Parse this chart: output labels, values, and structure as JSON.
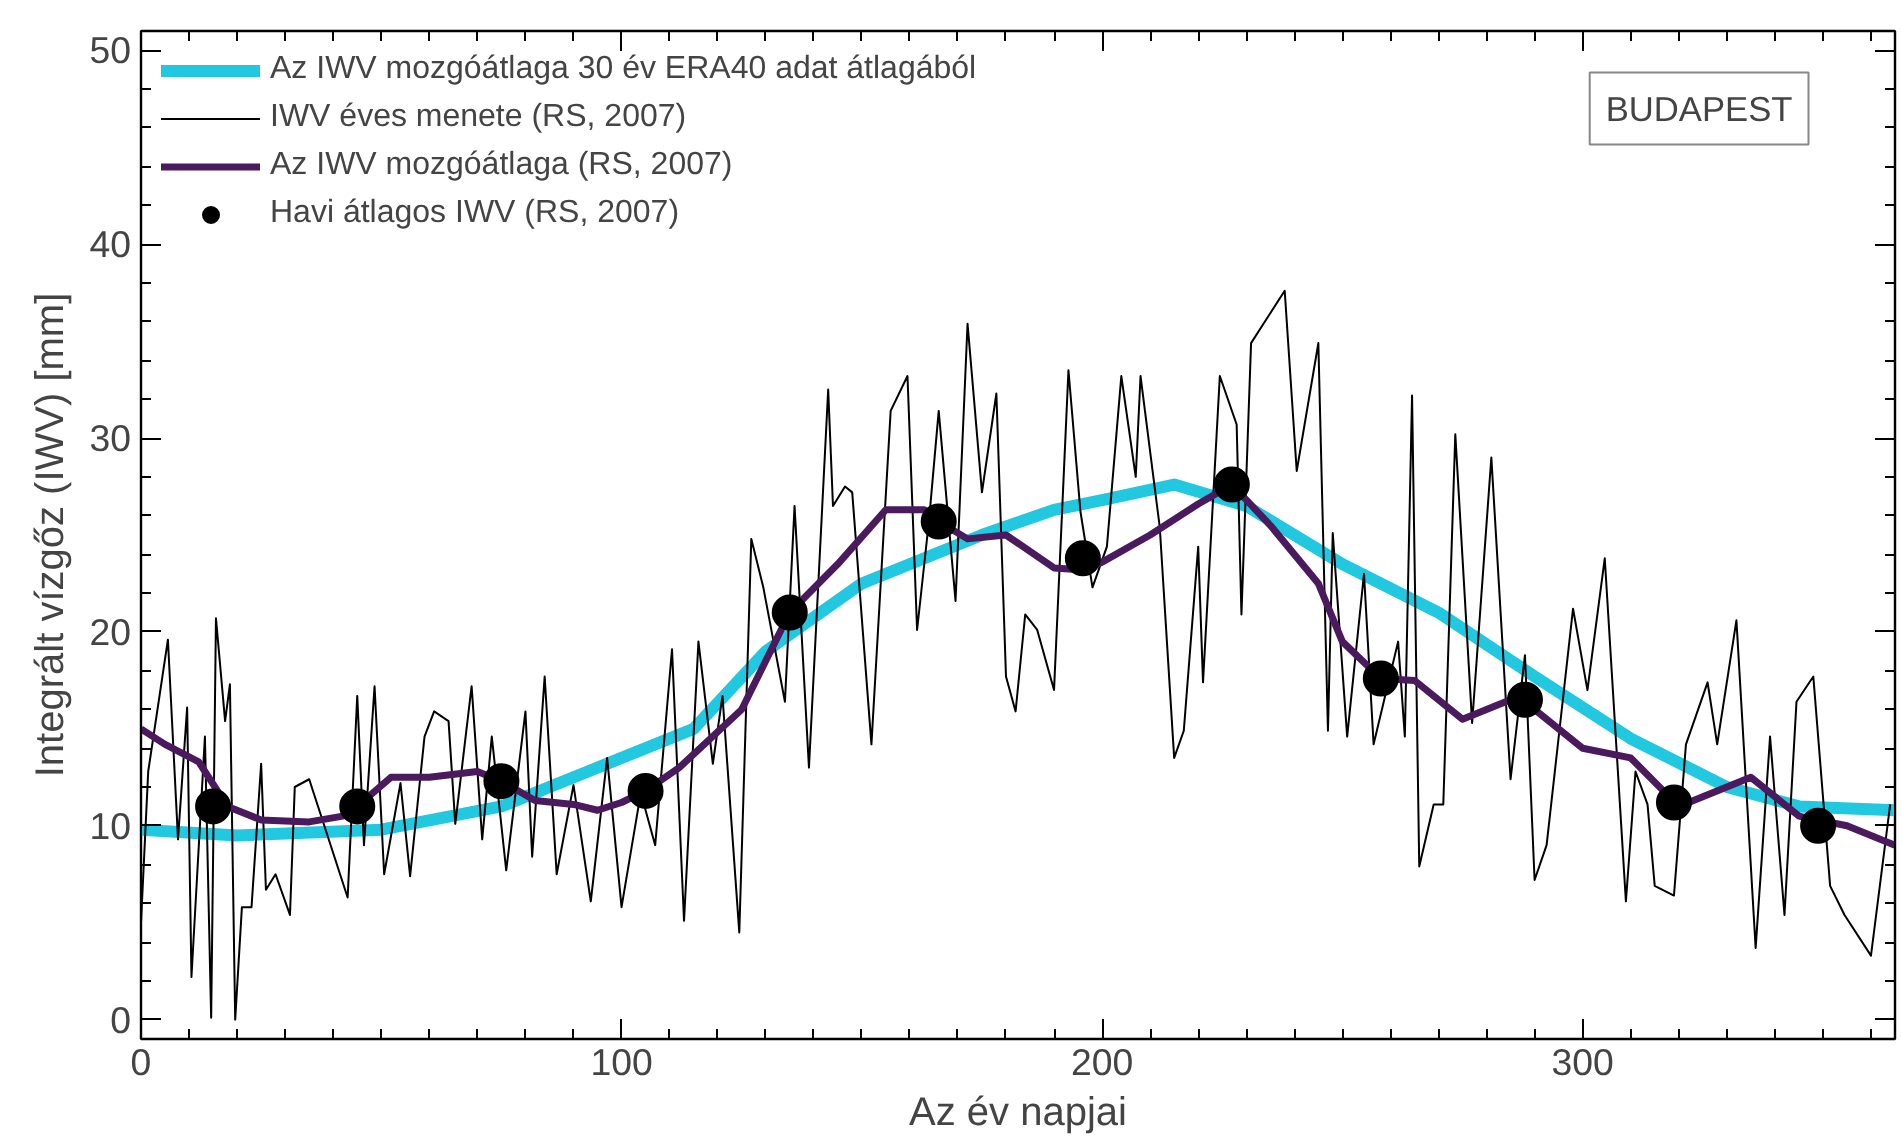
{
  "chart_data": {
    "type": "line",
    "xlabel": "Az év napjai",
    "ylabel": "Integrált vízgőz (IWV) [mm]",
    "xlim": [
      0,
      365
    ],
    "ylim": [
      -1,
      51
    ],
    "xticks": [
      0,
      100,
      200,
      300
    ],
    "yticks": [
      0,
      10,
      20,
      30,
      40,
      50
    ],
    "grid": false,
    "legend": "top left",
    "annotations": [
      "BUDAPEST"
    ],
    "series": [
      {
        "name": "Az IWV mozgóátlaga 30 év ERA40 adat átlagából",
        "color": "#22c8e0",
        "x": [
          0,
          20,
          50,
          75,
          100,
          115,
          130,
          150,
          175,
          190,
          200,
          215,
          230,
          250,
          270,
          290,
          310,
          330,
          345,
          365
        ],
        "values": [
          9.8,
          9.5,
          9.8,
          11,
          13.5,
          15,
          19,
          22.5,
          25,
          26.3,
          26.8,
          27.6,
          26.5,
          23.5,
          21,
          17.7,
          14.5,
          12,
          11,
          10.8
        ]
      },
      {
        "name": "IWV éves menete (RS, 2007)",
        "color": "#000000",
        "x": [
          0,
          1.5,
          5.6,
          7.7,
          9.6,
          10.5,
          13.3,
          14.6,
          15.6,
          17.5,
          18.5,
          19.6,
          21,
          23,
          25,
          26,
          28,
          31,
          32,
          35,
          43,
          45,
          46.4,
          48.6,
          50.6,
          54,
          56,
          59,
          61,
          64,
          65.4,
          68.8,
          71,
          73,
          76,
          80,
          81.4,
          84,
          86.5,
          90,
          93.6,
          97,
          100,
          104,
          107,
          110.5,
          113,
          116,
          119,
          121,
          124.5,
          127,
          129.5,
          134,
          136,
          139,
          143,
          144,
          146.5,
          148,
          152,
          156,
          159.5,
          161.5,
          164,
          166,
          169.5,
          172,
          175,
          178,
          180,
          182,
          184,
          186.5,
          190,
          193,
          195.5,
          198,
          201,
          204,
          207,
          208,
          212,
          215,
          217,
          220,
          221,
          224.5,
          228,
          229,
          231,
          238,
          240.5,
          245,
          247,
          248,
          251,
          254.5,
          256.5,
          261.6,
          263,
          264.5,
          266,
          269,
          271,
          273.5,
          277,
          281,
          285,
          288,
          290,
          292.5,
          298,
          301,
          304.6,
          309,
          311,
          313.5,
          315,
          319,
          321.5,
          326,
          328,
          332,
          336,
          339,
          342,
          344.5,
          348,
          351.5,
          354.5,
          360,
          364
        ],
        "values": [
          5,
          12.8,
          19.6,
          9.3,
          16.1,
          2.2,
          14.6,
          0.1,
          20.7,
          15.4,
          17.3,
          0,
          5.8,
          5.8,
          13.2,
          6.7,
          7.5,
          5.4,
          12,
          12.4,
          6.3,
          16.7,
          9,
          17.2,
          7.5,
          12.2,
          7.4,
          14.6,
          15.9,
          15.4,
          10.1,
          17.2,
          9.3,
          14.6,
          7.7,
          15.9,
          8.4,
          17.7,
          7.5,
          12.1,
          6.1,
          13.5,
          5.8,
          11.7,
          9,
          19.1,
          5.1,
          19.5,
          13.2,
          16.7,
          4.5,
          24.8,
          22.3,
          16.4,
          26.5,
          13,
          32.5,
          26.5,
          27.5,
          27.2,
          14.2,
          31.4,
          33.2,
          20.1,
          25.8,
          31.4,
          21.6,
          35.9,
          27.2,
          32.3,
          17.7,
          15.9,
          20.9,
          20.1,
          17,
          33.5,
          26.2,
          22.3,
          24.4,
          33.2,
          28,
          33.2,
          25.4,
          13.5,
          14.9,
          24.4,
          17.4,
          33.2,
          30.7,
          20.9,
          34.9,
          37.6,
          28.3,
          34.9,
          14.9,
          25.1,
          14.6,
          23,
          14.2,
          19.5,
          14.6,
          32.2,
          7.9,
          11.1,
          11.1,
          30.2,
          15.3,
          29,
          12.4,
          18.8,
          7.2,
          9,
          21.2,
          17,
          23.8,
          6.1,
          12.8,
          11.1,
          6.9,
          6.4,
          14.2,
          17.4,
          14.2,
          20.6,
          3.7,
          14.6,
          5.4,
          16.4,
          17.7,
          6.9,
          5.4,
          3.3,
          11.1
        ]
      },
      {
        "name": "Az IWV mozgóátlaga (RS, 2007)",
        "color": "#4b1a5e",
        "x": [
          0,
          5,
          12,
          18,
          25,
          35,
          42,
          45,
          52,
          60,
          70,
          75,
          82,
          90,
          95,
          100,
          105,
          112,
          125,
          135,
          145,
          155,
          163,
          166,
          172,
          180,
          190,
          196,
          200,
          210,
          220,
          227,
          235,
          245,
          250,
          258,
          265,
          275,
          285,
          290,
          300,
          310,
          320,
          335,
          345,
          355,
          365
        ],
        "values": [
          15,
          14.2,
          13.3,
          11,
          10.3,
          10.2,
          10.5,
          11,
          12.5,
          12.5,
          12.8,
          12.3,
          11.3,
          11.1,
          10.8,
          11.2,
          11.8,
          13,
          16,
          21,
          23.5,
          26.3,
          26.3,
          25.7,
          24.8,
          25,
          23.3,
          23.2,
          23.6,
          25,
          26.6,
          27.6,
          25.5,
          22.5,
          19.5,
          17.6,
          17.5,
          15.5,
          16.5,
          16,
          14,
          13.5,
          11,
          12.5,
          10.5,
          10,
          9
        ]
      },
      {
        "name": "Havi átlagos IWV (RS, 2007)",
        "type": "scatter",
        "marker": "circle",
        "color": "#000000",
        "x": [
          15,
          45,
          75,
          105,
          135,
          166,
          196,
          227,
          258,
          288,
          319,
          349
        ],
        "values": [
          11,
          11,
          12.3,
          11.8,
          21,
          25.7,
          23.8,
          27.6,
          17.6,
          16.5,
          11.2,
          10
        ]
      }
    ]
  }
}
